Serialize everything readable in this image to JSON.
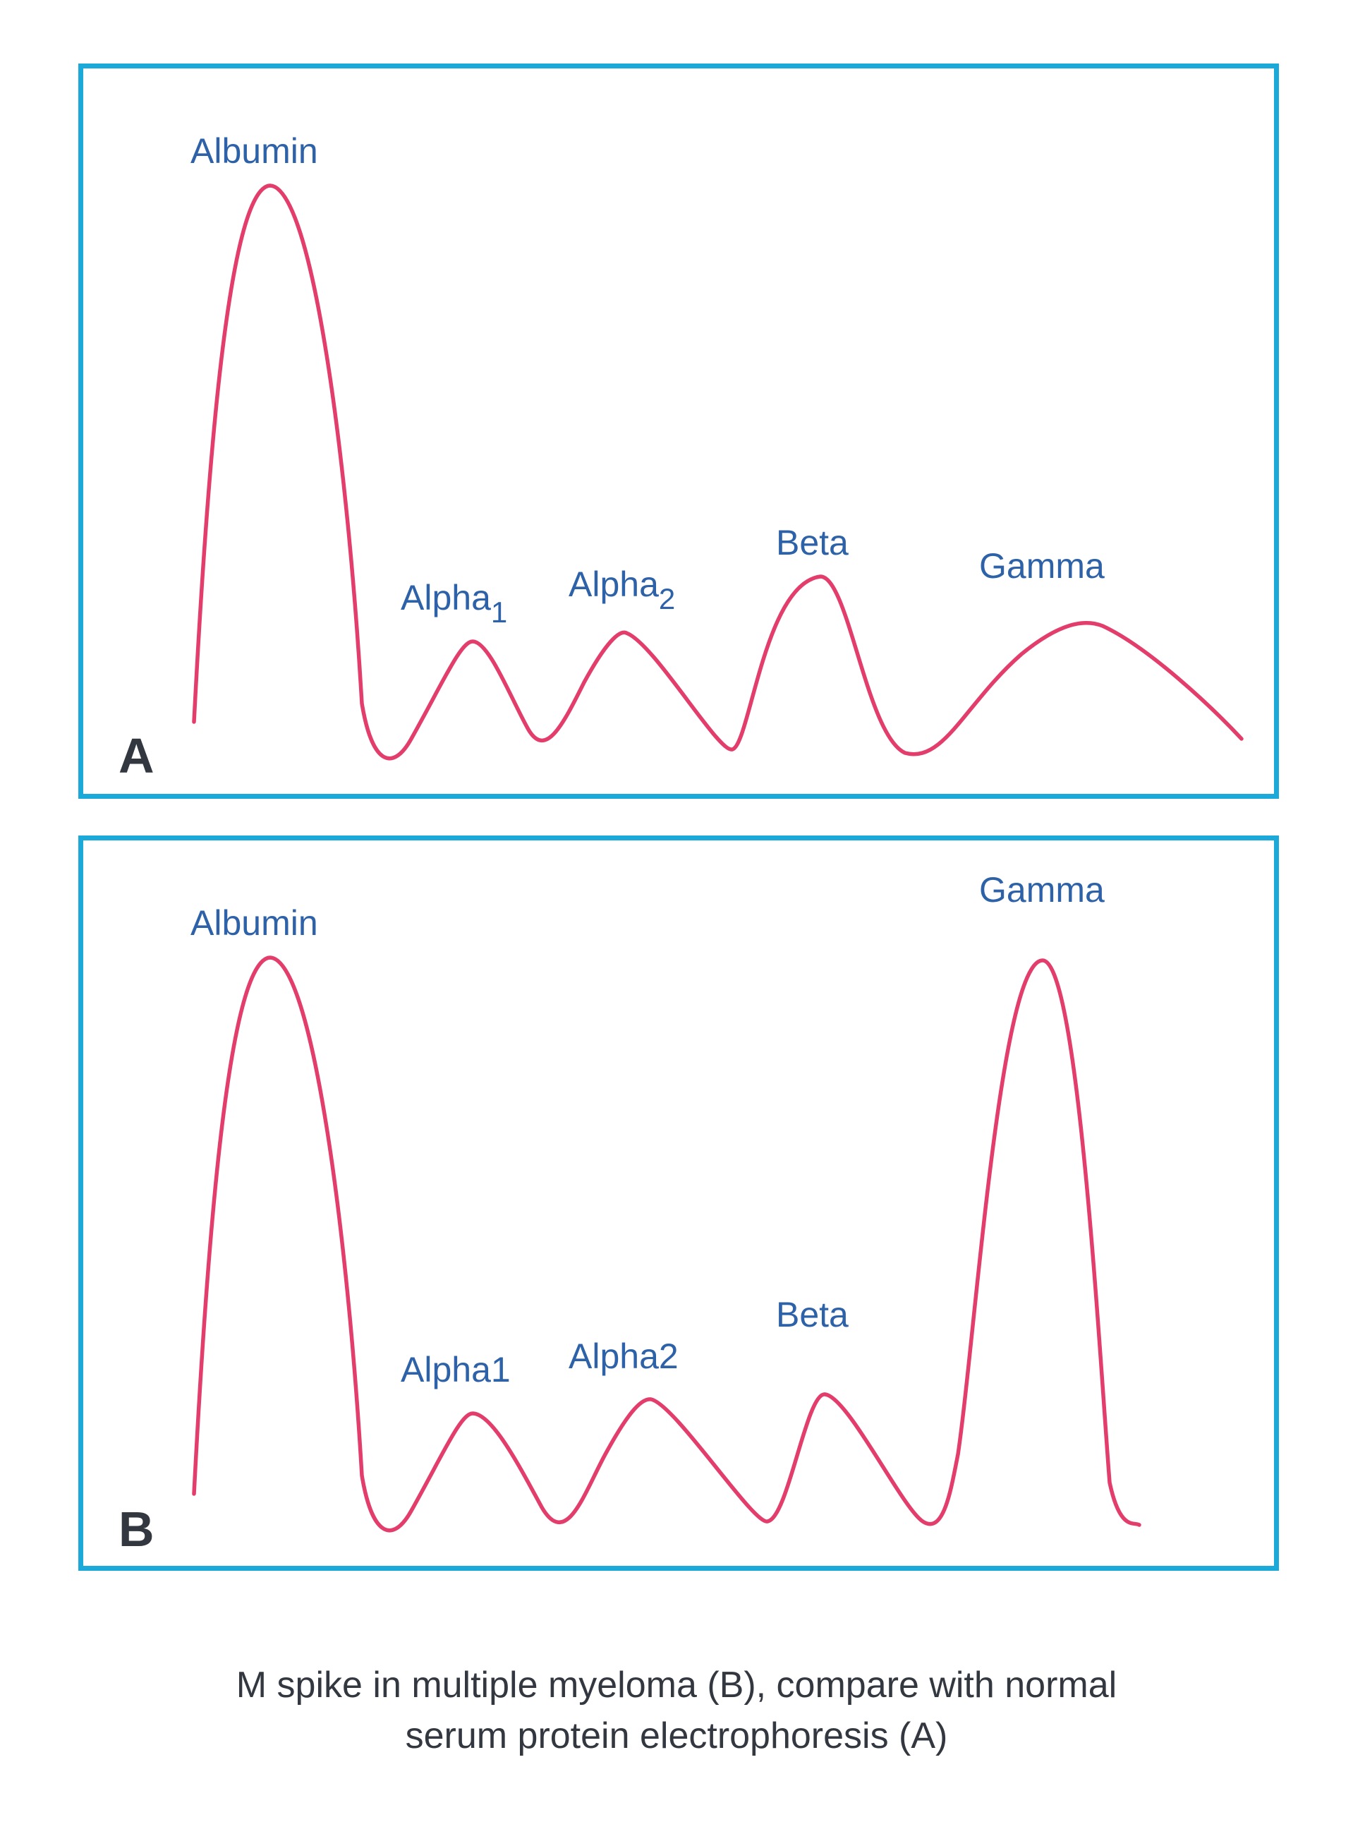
{
  "panels": [
    {
      "letter": "A",
      "labels": {
        "albumin": "Albumin",
        "alpha1": "Alpha",
        "alpha1_sub": "1",
        "alpha2": "Alpha",
        "alpha2_sub": "2",
        "beta": "Beta",
        "gamma": "Gamma"
      }
    },
    {
      "letter": "B",
      "labels": {
        "albumin": "Albumin",
        "alpha1": "Alpha1",
        "alpha2": "Alpha2",
        "beta": "Beta",
        "gamma": "Gamma"
      }
    }
  ],
  "caption": {
    "line1": "M spike in multiple myeloma (B), compare with normal",
    "line2": "serum protein electrophoresis (A)"
  },
  "colors": {
    "frame": "#1aa9d9",
    "curve": "#e23d6b",
    "label": "#2e62a8",
    "text": "#333740"
  }
}
